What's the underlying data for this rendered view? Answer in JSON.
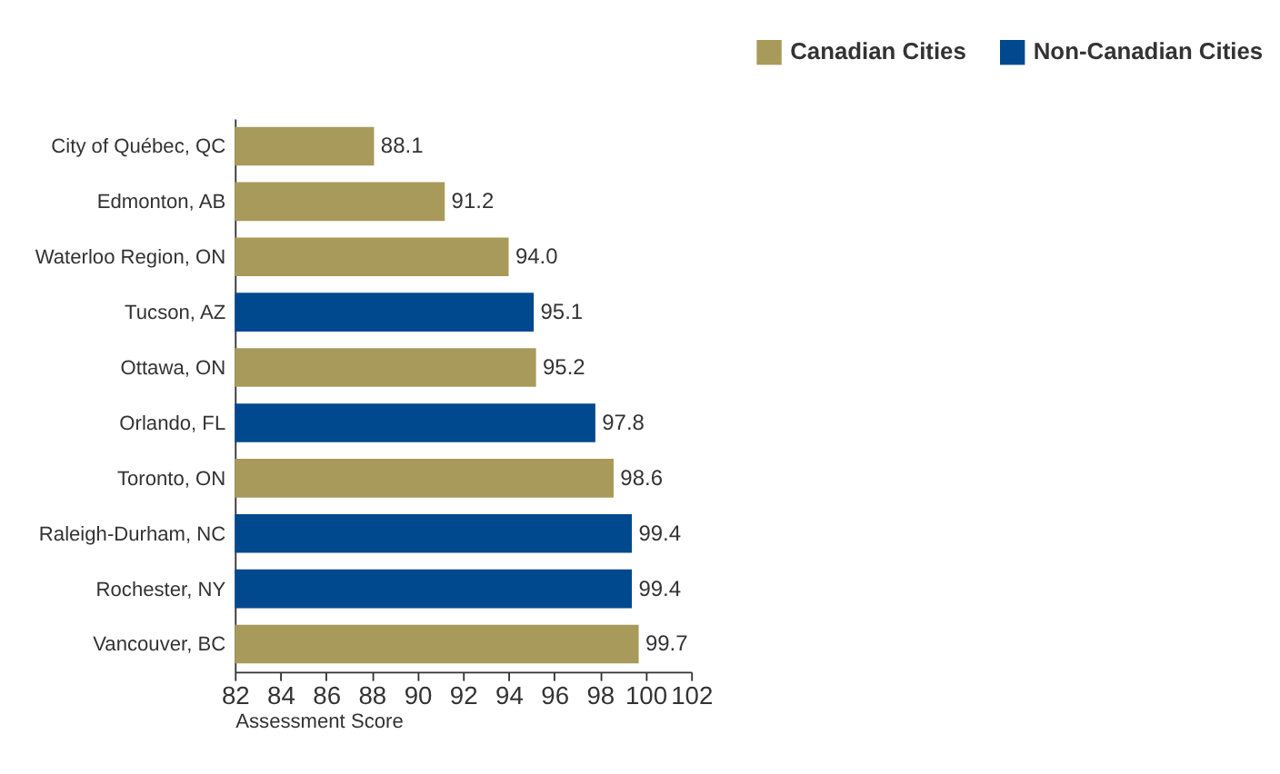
{
  "chart_data": {
    "type": "bar",
    "orientation": "horizontal",
    "xlabel": "Assessment Score",
    "categories": [
      "City of Québec, QC",
      "Edmonton, AB",
      "Waterloo Region, ON",
      "Tucson, AZ",
      "Ottawa, ON",
      "Orlando, FL",
      "Toronto, ON",
      "Raleigh-Durham, NC",
      "Rochester, NY",
      "Vancouver, BC"
    ],
    "series": [
      {
        "name": "Canadian Cities",
        "color": "#a89a5a",
        "values": [
          88.1,
          91.2,
          94.0,
          null,
          95.2,
          null,
          98.6,
          null,
          null,
          99.7
        ]
      },
      {
        "name": "Non-Canadian Cities",
        "color": "#00498f",
        "values": [
          null,
          null,
          null,
          95.1,
          null,
          97.8,
          null,
          99.4,
          99.4,
          null
        ]
      }
    ],
    "value_labels": [
      "88.1",
      "91.2",
      "94.0",
      "95.1",
      "95.2",
      "97.8",
      "98.6",
      "99.4",
      "99.4",
      "99.7"
    ],
    "xlim": [
      82,
      102
    ],
    "xticks": [
      82,
      84,
      86,
      88,
      90,
      92,
      94,
      96,
      98,
      100,
      102
    ],
    "grid": false,
    "legend": "top right"
  }
}
